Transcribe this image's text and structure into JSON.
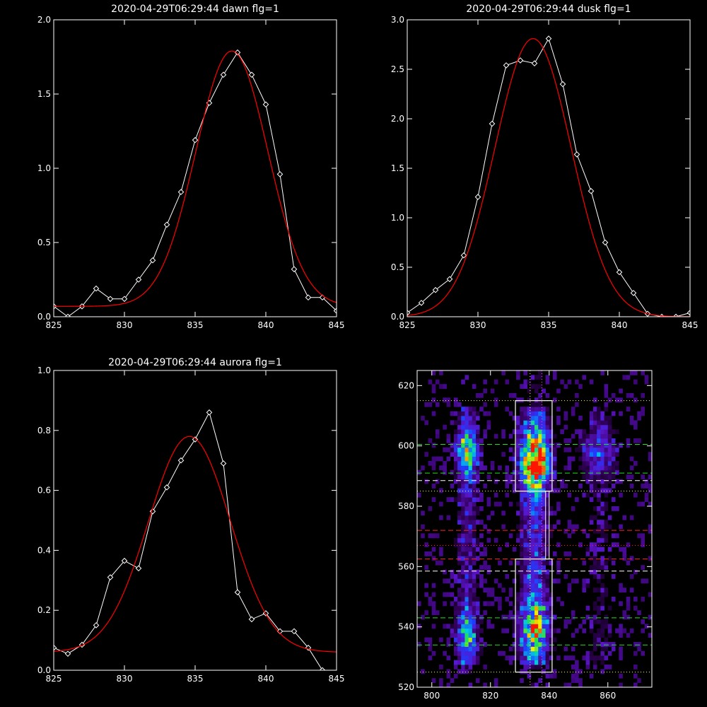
{
  "colors": {
    "background": "#000000",
    "axes": "#ffffff",
    "data_line": "#ffffff",
    "fit_line": "#ff0000",
    "guide_white": "#ffffff",
    "guide_yellow": "#ffff66",
    "guide_green": "#22dd22",
    "guide_red": "#ff2222",
    "guide_magenta": "#ff44ff"
  },
  "chart_data": [
    {
      "type": "line",
      "title": "2020-04-29T06:29:44 dawn flg=1",
      "xlim": [
        825,
        845
      ],
      "ylim": [
        0,
        2.0
      ],
      "xticks": [
        825,
        830,
        835,
        840,
        845
      ],
      "xtick_labels": [
        "825",
        "830",
        "835",
        "840",
        "845"
      ],
      "yticks": [
        0,
        0.5,
        1.0,
        1.5,
        2.0
      ],
      "ytick_labels": [
        "0.0",
        "0.5",
        "1.0",
        "1.5",
        "2.0"
      ],
      "series": [
        {
          "marker": "diamond",
          "color": "#ffffff",
          "x": [
            825,
            826,
            827,
            828,
            829,
            830,
            831,
            832,
            833,
            834,
            835,
            836,
            837,
            838,
            839,
            840,
            841,
            842,
            843,
            844,
            845
          ],
          "y": [
            0.07,
            0.0,
            0.07,
            0.19,
            0.12,
            0.12,
            0.25,
            0.38,
            0.62,
            0.84,
            1.19,
            1.44,
            1.63,
            1.78,
            1.63,
            1.43,
            0.96,
            0.32,
            0.13,
            0.13,
            0.04
          ]
        },
        {
          "color": "#ff0000",
          "gauss": {
            "base": 0.07,
            "amp": 1.72,
            "center": 837.6,
            "sigma": 2.55
          }
        }
      ]
    },
    {
      "type": "line",
      "title": "2020-04-29T06:29:44 dusk flg=1",
      "xlim": [
        825,
        845
      ],
      "ylim": [
        0,
        3.0
      ],
      "xticks": [
        825,
        830,
        835,
        840,
        845
      ],
      "xtick_labels": [
        "825",
        "830",
        "835",
        "840",
        "845"
      ],
      "yticks": [
        0,
        0.5,
        1.0,
        1.5,
        2.0,
        2.5,
        3.0
      ],
      "ytick_labels": [
        "0.0",
        "0.5",
        "1.0",
        "1.5",
        "2.0",
        "2.5",
        "3.0"
      ],
      "series": [
        {
          "marker": "diamond",
          "color": "#ffffff",
          "x": [
            825,
            826,
            827,
            828,
            829,
            830,
            831,
            832,
            833,
            834,
            835,
            836,
            837,
            838,
            839,
            840,
            841,
            842,
            843,
            844,
            845
          ],
          "y": [
            0.04,
            0.14,
            0.27,
            0.38,
            0.62,
            1.21,
            1.95,
            2.54,
            2.59,
            2.56,
            2.81,
            2.35,
            1.64,
            1.27,
            0.75,
            0.45,
            0.24,
            0.03,
            0.0,
            0.0,
            0.04
          ]
        },
        {
          "color": "#ff0000",
          "gauss": {
            "base": 0.0,
            "amp": 2.81,
            "center": 833.9,
            "sigma": 2.7
          }
        }
      ]
    },
    {
      "type": "line",
      "title": "2020-04-29T06:29:44 aurora flg=1",
      "xlim": [
        825,
        845
      ],
      "ylim": [
        0,
        1.0
      ],
      "xticks": [
        825,
        830,
        835,
        840,
        845
      ],
      "xtick_labels": [
        "825",
        "830",
        "835",
        "840",
        "845"
      ],
      "yticks": [
        0,
        0.2,
        0.4,
        0.6,
        0.8,
        1.0
      ],
      "ytick_labels": [
        "0.0",
        "0.2",
        "0.4",
        "0.6",
        "0.8",
        "1.0"
      ],
      "series": [
        {
          "marker": "diamond",
          "color": "#ffffff",
          "x": [
            825,
            826,
            827,
            828,
            829,
            830,
            831,
            832,
            833,
            834,
            835,
            836,
            837,
            838,
            839,
            840,
            841,
            842,
            843,
            844
          ],
          "y": [
            0.075,
            0.055,
            0.085,
            0.15,
            0.31,
            0.365,
            0.34,
            0.53,
            0.61,
            0.7,
            0.77,
            0.86,
            0.69,
            0.26,
            0.17,
            0.19,
            0.13,
            0.13,
            0.075,
            0.0
          ]
        },
        {
          "color": "#ff0000",
          "gauss": {
            "base": 0.06,
            "amp": 0.72,
            "center": 834.6,
            "sigma": 2.9
          }
        }
      ]
    },
    {
      "type": "heatmap",
      "title": "",
      "xlim": [
        795,
        875
      ],
      "ylim": [
        520,
        625
      ],
      "xticks": [
        800,
        820,
        840,
        860
      ],
      "xtick_labels": [
        "800",
        "820",
        "840",
        "860"
      ],
      "yticks": [
        520,
        540,
        560,
        580,
        600,
        620
      ],
      "ytick_labels": [
        "520",
        "540",
        "560",
        "580",
        "600",
        "620"
      ],
      "boxes": [
        {
          "x0": 828.5,
          "x1": 841,
          "y0": 585,
          "y1": 615,
          "color": "#ffffff"
        },
        {
          "x0": 828.5,
          "x1": 841,
          "y0": 525,
          "y1": 562.5,
          "color": "#ffffff"
        }
      ],
      "hlines": [
        {
          "y": 615,
          "color": "#ffff66",
          "style": "dotted"
        },
        {
          "y": 600.5,
          "color": "#22dd22",
          "style": "dashed"
        },
        {
          "y": 591,
          "color": "#22dd22",
          "style": "dashed"
        },
        {
          "y": 588.5,
          "color": "#ffffff",
          "style": "dashed"
        },
        {
          "y": 585,
          "color": "#ffff66",
          "style": "dotted"
        },
        {
          "y": 572,
          "color": "#ff2222",
          "style": "dashed"
        },
        {
          "y": 567,
          "color": "#ff2222",
          "style": "dotted"
        },
        {
          "y": 562.5,
          "color": "#ff2222",
          "style": "dashed"
        },
        {
          "y": 558.5,
          "color": "#ffffff",
          "style": "dashed"
        },
        {
          "y": 543,
          "color": "#22dd22",
          "style": "dashed"
        },
        {
          "y": 534,
          "color": "#22dd22",
          "style": "dashed"
        },
        {
          "y": 525,
          "color": "#ffff66",
          "style": "dotted"
        }
      ],
      "vlines": [
        {
          "x": 833.5,
          "color": "#ffff66",
          "style": "dotted"
        },
        {
          "x": 837.5,
          "color": "#ff44ff",
          "style": "dotted"
        }
      ],
      "intensity_bands": [
        {
          "x_center": 812,
          "x_width": 2.5,
          "peaks": [
            {
              "y": 598,
              "w": 5,
              "a": 0.5
            },
            {
              "y": 537,
              "w": 6,
              "a": 0.35
            }
          ],
          "base": 0.18
        },
        {
          "x_center": 835,
          "x_width": 3.2,
          "peaks": [
            {
              "y": 595,
              "w": 6,
              "a": 0.95
            },
            {
              "y": 540,
              "w": 6,
              "a": 0.55
            }
          ],
          "base": 0.28
        },
        {
          "x_center": 857,
          "x_width": 4,
          "peaks": [
            {
              "y": 598,
              "w": 5,
              "a": 0.25
            }
          ],
          "base": 0.08
        }
      ]
    }
  ]
}
